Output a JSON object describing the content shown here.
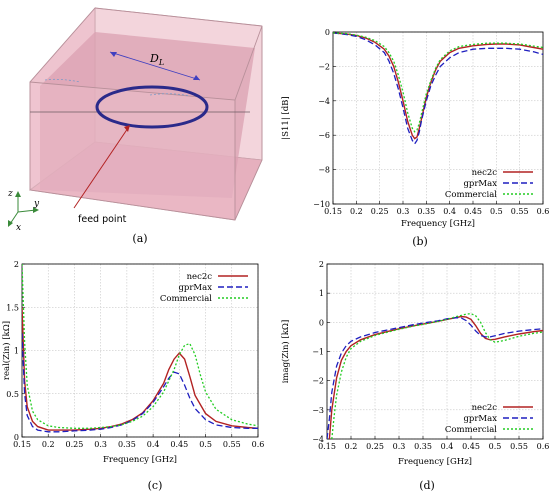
{
  "panel_labels": [
    "(a)",
    "(b)",
    "(c)",
    "(d)"
  ],
  "diagram": {
    "dimension_label": "D",
    "dimension_subscript": "L",
    "feed_label": "feed point",
    "axis_z": "z",
    "axis_y": "y",
    "axis_x": "x"
  },
  "colors": {
    "nec2c": "#b22222",
    "gprMax": "#1f1fbf",
    "Commercial": "#22cc22",
    "box_fill": "#e8b8c4",
    "loop": "#2a2a8a"
  },
  "chart_data": [
    {
      "id": "b",
      "type": "line",
      "xlabel": "Frequency [GHz]",
      "ylabel": "|S11| [dB]",
      "xlim": [
        0.15,
        0.6
      ],
      "ylim": [
        -10,
        0
      ],
      "xticks": [
        0.15,
        0.2,
        0.25,
        0.3,
        0.35,
        0.4,
        0.45,
        0.5,
        0.55,
        0.6
      ],
      "yticks": [
        0,
        -2,
        -4,
        -6,
        -8,
        -10
      ],
      "xtick_labels": [
        "0.15",
        "0.2",
        "0.25",
        "0.3",
        "0.35",
        "0.4",
        "0.45",
        "0.5",
        "0.55",
        "0.6"
      ],
      "ytick_labels": [
        "0",
        "−2",
        "−4",
        "−6",
        "−8",
        "−10"
      ],
      "grid": true,
      "legend_position": "bottom-right",
      "series": [
        {
          "name": "nec2c",
          "style": "solid",
          "x": [
            0.15,
            0.18,
            0.2,
            0.22,
            0.24,
            0.26,
            0.27,
            0.28,
            0.29,
            0.3,
            0.31,
            0.32,
            0.325,
            0.33,
            0.335,
            0.34,
            0.35,
            0.36,
            0.37,
            0.38,
            0.4,
            0.42,
            0.45,
            0.48,
            0.5,
            0.52,
            0.55,
            0.58,
            0.6
          ],
          "y": [
            -0.05,
            -0.12,
            -0.2,
            -0.35,
            -0.6,
            -1.0,
            -1.4,
            -2.0,
            -2.9,
            -4.0,
            -5.2,
            -6.0,
            -6.2,
            -6.1,
            -5.6,
            -5.0,
            -3.8,
            -2.9,
            -2.2,
            -1.7,
            -1.2,
            -0.95,
            -0.8,
            -0.72,
            -0.7,
            -0.7,
            -0.75,
            -0.9,
            -1.0
          ]
        },
        {
          "name": "gprMax",
          "style": "dashed",
          "x": [
            0.15,
            0.18,
            0.2,
            0.22,
            0.24,
            0.26,
            0.27,
            0.28,
            0.29,
            0.3,
            0.31,
            0.32,
            0.325,
            0.33,
            0.335,
            0.34,
            0.35,
            0.36,
            0.37,
            0.38,
            0.4,
            0.42,
            0.45,
            0.48,
            0.5,
            0.52,
            0.55,
            0.58,
            0.6
          ],
          "y": [
            -0.05,
            -0.15,
            -0.25,
            -0.45,
            -0.75,
            -1.2,
            -1.7,
            -2.4,
            -3.3,
            -4.4,
            -5.6,
            -6.3,
            -6.5,
            -6.3,
            -5.8,
            -5.1,
            -4.0,
            -3.1,
            -2.5,
            -2.0,
            -1.5,
            -1.2,
            -1.0,
            -0.95,
            -0.95,
            -0.95,
            -1.0,
            -1.15,
            -1.3
          ]
        },
        {
          "name": "Commercial",
          "style": "dotted",
          "x": [
            0.15,
            0.18,
            0.2,
            0.22,
            0.24,
            0.26,
            0.27,
            0.28,
            0.29,
            0.3,
            0.31,
            0.32,
            0.325,
            0.33,
            0.335,
            0.34,
            0.35,
            0.36,
            0.37,
            0.38,
            0.4,
            0.42,
            0.45,
            0.48,
            0.5,
            0.52,
            0.55,
            0.58,
            0.6
          ],
          "y": [
            -0.05,
            -0.1,
            -0.18,
            -0.3,
            -0.5,
            -0.85,
            -1.2,
            -1.7,
            -2.5,
            -3.5,
            -4.7,
            -5.6,
            -5.8,
            -5.7,
            -5.3,
            -4.7,
            -3.6,
            -2.8,
            -2.1,
            -1.6,
            -1.1,
            -0.85,
            -0.72,
            -0.65,
            -0.65,
            -0.65,
            -0.7,
            -0.82,
            -0.9
          ]
        }
      ]
    },
    {
      "id": "c",
      "type": "line",
      "xlabel": "Frequency [GHz]",
      "ylabel": "real(Zin) [kΩ]",
      "xlim": [
        0.15,
        0.6
      ],
      "ylim": [
        0,
        2
      ],
      "xticks": [
        0.15,
        0.2,
        0.25,
        0.3,
        0.35,
        0.4,
        0.45,
        0.5,
        0.55,
        0.6
      ],
      "yticks": [
        0,
        0.5,
        1,
        1.5,
        2
      ],
      "xtick_labels": [
        "0.15",
        "0.2",
        "0.25",
        "0.3",
        "0.35",
        "0.4",
        "0.45",
        "0.5",
        "0.55",
        "0.6"
      ],
      "ytick_labels": [
        "0",
        "0.5",
        "1",
        "1.5",
        "2"
      ],
      "grid": true,
      "legend_position": "top-right",
      "series": [
        {
          "name": "nec2c",
          "style": "solid",
          "x": [
            0.15,
            0.155,
            0.16,
            0.17,
            0.18,
            0.2,
            0.22,
            0.25,
            0.28,
            0.3,
            0.32,
            0.34,
            0.36,
            0.38,
            0.4,
            0.42,
            0.43,
            0.44,
            0.45,
            0.46,
            0.47,
            0.48,
            0.5,
            0.52,
            0.55,
            0.58,
            0.6
          ],
          "y": [
            1.5,
            0.65,
            0.35,
            0.18,
            0.12,
            0.08,
            0.08,
            0.08,
            0.09,
            0.1,
            0.12,
            0.15,
            0.2,
            0.28,
            0.42,
            0.62,
            0.78,
            0.9,
            0.97,
            0.9,
            0.7,
            0.48,
            0.27,
            0.18,
            0.13,
            0.11,
            0.1
          ]
        },
        {
          "name": "gprMax",
          "style": "dashed",
          "x": [
            0.15,
            0.155,
            0.16,
            0.17,
            0.18,
            0.2,
            0.22,
            0.25,
            0.28,
            0.3,
            0.32,
            0.34,
            0.36,
            0.38,
            0.4,
            0.42,
            0.43,
            0.44,
            0.45,
            0.46,
            0.47,
            0.48,
            0.5,
            0.52,
            0.55,
            0.58,
            0.6
          ],
          "y": [
            1.2,
            0.5,
            0.25,
            0.12,
            0.08,
            0.06,
            0.06,
            0.07,
            0.08,
            0.09,
            0.11,
            0.14,
            0.19,
            0.27,
            0.4,
            0.58,
            0.68,
            0.75,
            0.73,
            0.6,
            0.45,
            0.33,
            0.2,
            0.14,
            0.11,
            0.1,
            0.1
          ]
        },
        {
          "name": "Commercial",
          "style": "dotted",
          "x": [
            0.15,
            0.155,
            0.16,
            0.17,
            0.18,
            0.2,
            0.22,
            0.25,
            0.28,
            0.3,
            0.32,
            0.34,
            0.36,
            0.38,
            0.4,
            0.42,
            0.44,
            0.45,
            0.46,
            0.47,
            0.48,
            0.49,
            0.5,
            0.52,
            0.55,
            0.58,
            0.6
          ],
          "y": [
            2.0,
            1.1,
            0.6,
            0.3,
            0.2,
            0.13,
            0.11,
            0.1,
            0.1,
            0.11,
            0.12,
            0.14,
            0.18,
            0.24,
            0.35,
            0.52,
            0.78,
            0.95,
            1.06,
            1.08,
            0.95,
            0.72,
            0.52,
            0.32,
            0.2,
            0.15,
            0.13
          ]
        }
      ]
    },
    {
      "id": "d",
      "type": "line",
      "xlabel": "Frequency [GHz]",
      "ylabel": "imag(Zin) [kΩ]",
      "xlim": [
        0.15,
        0.6
      ],
      "ylim": [
        -4,
        2
      ],
      "xticks": [
        0.15,
        0.2,
        0.25,
        0.3,
        0.35,
        0.4,
        0.45,
        0.5,
        0.55,
        0.6
      ],
      "yticks": [
        2,
        1,
        0,
        -1,
        -2,
        -3,
        -4
      ],
      "xtick_labels": [
        "0.15",
        "0.2",
        "0.25",
        "0.3",
        "0.35",
        "0.4",
        "0.45",
        "0.5",
        "0.55",
        "0.6"
      ],
      "ytick_labels": [
        "2",
        "1",
        "0",
        "−1",
        "−2",
        "−3",
        "−4"
      ],
      "grid": true,
      "legend_position": "bottom-right",
      "series": [
        {
          "name": "nec2c",
          "style": "solid",
          "x": [
            0.155,
            0.16,
            0.17,
            0.18,
            0.19,
            0.2,
            0.22,
            0.25,
            0.28,
            0.3,
            0.33,
            0.36,
            0.38,
            0.4,
            0.42,
            0.43,
            0.44,
            0.45,
            0.46,
            0.47,
            0.48,
            0.49,
            0.5,
            0.52,
            0.55,
            0.58,
            0.6
          ],
          "y": [
            -4.0,
            -3.0,
            -1.9,
            -1.3,
            -1.0,
            -0.8,
            -0.6,
            -0.42,
            -0.3,
            -0.22,
            -0.12,
            -0.03,
            0.03,
            0.1,
            0.17,
            0.2,
            0.18,
            0.1,
            -0.12,
            -0.38,
            -0.55,
            -0.6,
            -0.58,
            -0.5,
            -0.4,
            -0.32,
            -0.28
          ]
        },
        {
          "name": "gprMax",
          "style": "dashed",
          "x": [
            0.15,
            0.155,
            0.16,
            0.17,
            0.18,
            0.19,
            0.2,
            0.22,
            0.25,
            0.28,
            0.3,
            0.33,
            0.36,
            0.38,
            0.4,
            0.42,
            0.43,
            0.44,
            0.45,
            0.46,
            0.47,
            0.48,
            0.49,
            0.5,
            0.52,
            0.55,
            0.58,
            0.6
          ],
          "y": [
            -4.0,
            -3.3,
            -2.4,
            -1.5,
            -1.05,
            -0.8,
            -0.65,
            -0.5,
            -0.35,
            -0.25,
            -0.18,
            -0.08,
            0.0,
            0.05,
            0.12,
            0.16,
            0.15,
            0.06,
            -0.1,
            -0.3,
            -0.45,
            -0.5,
            -0.5,
            -0.46,
            -0.38,
            -0.3,
            -0.25,
            -0.22
          ]
        },
        {
          "name": "Commercial",
          "style": "dotted",
          "x": [
            0.16,
            0.165,
            0.17,
            0.18,
            0.19,
            0.2,
            0.22,
            0.25,
            0.28,
            0.3,
            0.33,
            0.36,
            0.38,
            0.4,
            0.42,
            0.44,
            0.45,
            0.46,
            0.47,
            0.48,
            0.49,
            0.5,
            0.52,
            0.55,
            0.58,
            0.6
          ],
          "y": [
            -4.0,
            -3.2,
            -2.5,
            -1.7,
            -1.2,
            -0.9,
            -0.65,
            -0.45,
            -0.32,
            -0.24,
            -0.13,
            -0.04,
            0.03,
            0.1,
            0.2,
            0.28,
            0.3,
            0.22,
            0.0,
            -0.35,
            -0.6,
            -0.68,
            -0.62,
            -0.48,
            -0.38,
            -0.33
          ]
        }
      ]
    }
  ]
}
